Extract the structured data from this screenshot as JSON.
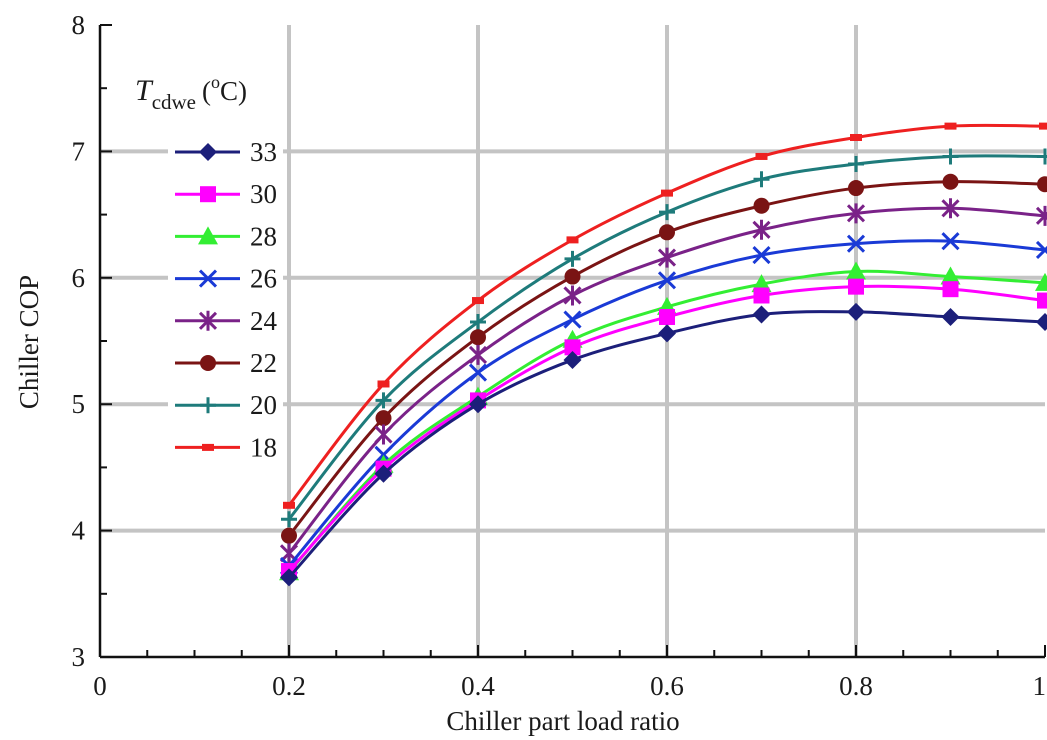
{
  "chart_data": {
    "type": "line",
    "title": "",
    "xlabel": "Chiller part load ratio",
    "ylabel": "Chiller COP",
    "xlim": [
      0,
      1
    ],
    "ylim": [
      3,
      8
    ],
    "xticks": [
      "0",
      "0.2",
      "0.4",
      "0.6",
      "0.8",
      "1"
    ],
    "yticks": [
      "3",
      "4",
      "5",
      "6",
      "7",
      "8"
    ],
    "grid": true,
    "legend_position": "upper-left",
    "legend_title": {
      "var": "T",
      "subscript": "cdwe",
      "unit": "(",
      "degree": "o",
      "unit_end": "C)"
    },
    "x": [
      0.2,
      0.3,
      0.4,
      0.5,
      0.6,
      0.7,
      0.8,
      0.9,
      1.0
    ],
    "series": [
      {
        "name": "33",
        "color": "#1c1f7a",
        "marker": "diamond",
        "values": [
          3.63,
          4.45,
          5.0,
          5.35,
          5.56,
          5.71,
          5.73,
          5.69,
          5.65
        ]
      },
      {
        "name": "30",
        "color": "#ff00ff",
        "marker": "square",
        "values": [
          3.68,
          4.49,
          5.03,
          5.45,
          5.69,
          5.86,
          5.93,
          5.91,
          5.82
        ]
      },
      {
        "name": "28",
        "color": "#33ee33",
        "marker": "triangle",
        "values": [
          3.67,
          4.52,
          5.06,
          5.51,
          5.77,
          5.95,
          6.05,
          6.01,
          5.96
        ]
      },
      {
        "name": "26",
        "color": "#1a3ad6",
        "marker": "x",
        "values": [
          3.72,
          4.6,
          5.25,
          5.67,
          5.98,
          6.18,
          6.27,
          6.29,
          6.22
        ]
      },
      {
        "name": "24",
        "color": "#7a2288",
        "marker": "star",
        "values": [
          3.82,
          4.76,
          5.39,
          5.86,
          6.16,
          6.38,
          6.51,
          6.55,
          6.49
        ]
      },
      {
        "name": "22",
        "color": "#7a1414",
        "marker": "circle",
        "values": [
          3.96,
          4.89,
          5.53,
          6.01,
          6.36,
          6.57,
          6.71,
          6.76,
          6.74
        ]
      },
      {
        "name": "20",
        "color": "#1e7b7b",
        "marker": "plus",
        "values": [
          4.09,
          5.03,
          5.65,
          6.15,
          6.52,
          6.78,
          6.9,
          6.96,
          6.96
        ]
      },
      {
        "name": "18",
        "color": "#ee2020",
        "marker": "dash",
        "values": [
          4.2,
          5.16,
          5.82,
          6.3,
          6.67,
          6.96,
          7.11,
          7.2,
          7.2
        ]
      }
    ]
  }
}
